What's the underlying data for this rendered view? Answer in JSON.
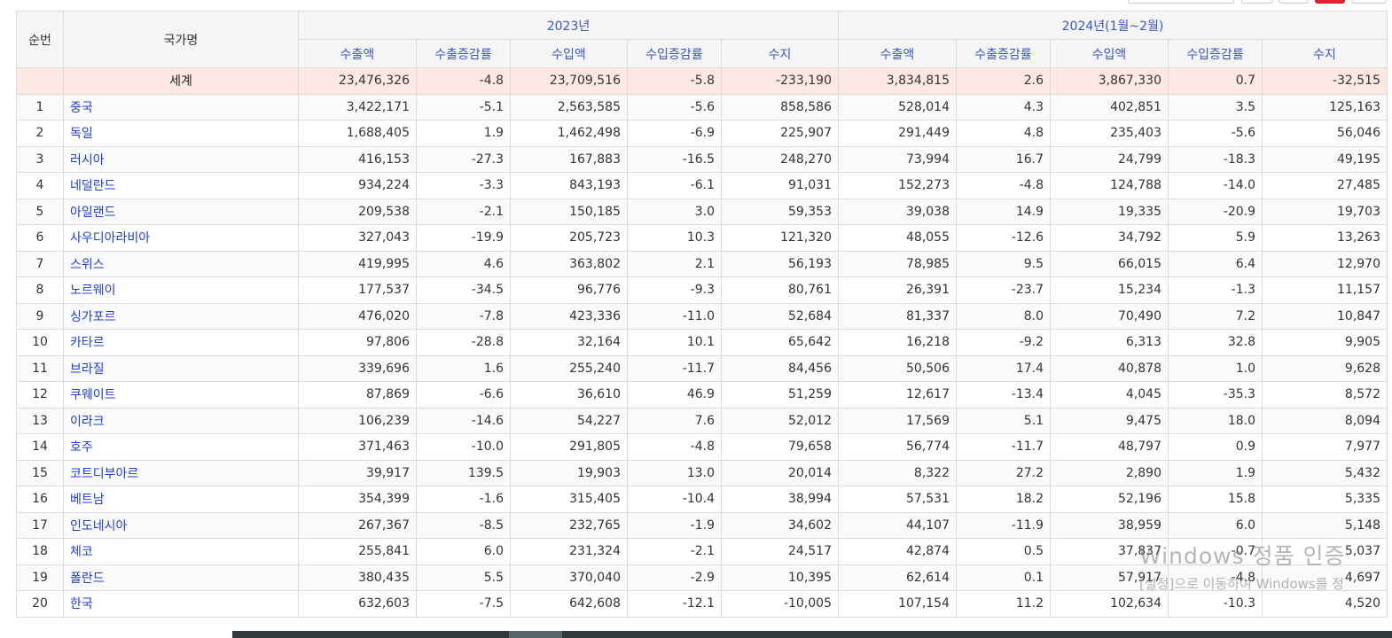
{
  "headers": {
    "index": "순번",
    "country": "국가명",
    "period_2023": "2023년",
    "period_2024": "2024년(1월~2월)",
    "sub": [
      "수출액",
      "수출증감률",
      "수입액",
      "수입증감률",
      "수지"
    ]
  },
  "world": {
    "index": "",
    "name": "세계",
    "values": [
      "23,476,326",
      "-4.8",
      "23,709,516",
      "-5.8",
      "-233,190",
      "3,834,815",
      "2.6",
      "3,867,330",
      "0.7",
      "-32,515"
    ]
  },
  "rows": [
    {
      "index": "1",
      "name": "중국",
      "values": [
        "3,422,171",
        "-5.1",
        "2,563,585",
        "-5.6",
        "858,586",
        "528,014",
        "4.3",
        "402,851",
        "3.5",
        "125,163"
      ]
    },
    {
      "index": "2",
      "name": "독일",
      "values": [
        "1,688,405",
        "1.9",
        "1,462,498",
        "-6.9",
        "225,907",
        "291,449",
        "4.8",
        "235,403",
        "-5.6",
        "56,046"
      ]
    },
    {
      "index": "3",
      "name": "러시아",
      "values": [
        "416,153",
        "-27.3",
        "167,883",
        "-16.5",
        "248,270",
        "73,994",
        "16.7",
        "24,799",
        "-18.3",
        "49,195"
      ]
    },
    {
      "index": "4",
      "name": "네덜란드",
      "values": [
        "934,224",
        "-3.3",
        "843,193",
        "-6.1",
        "91,031",
        "152,273",
        "-4.8",
        "124,788",
        "-14.0",
        "27,485"
      ]
    },
    {
      "index": "5",
      "name": "아일랜드",
      "values": [
        "209,538",
        "-2.1",
        "150,185",
        "3.0",
        "59,353",
        "39,038",
        "14.9",
        "19,335",
        "-20.9",
        "19,703"
      ]
    },
    {
      "index": "6",
      "name": "사우디아라비아",
      "values": [
        "327,043",
        "-19.9",
        "205,723",
        "10.3",
        "121,320",
        "48,055",
        "-12.6",
        "34,792",
        "5.9",
        "13,263"
      ]
    },
    {
      "index": "7",
      "name": "스위스",
      "values": [
        "419,995",
        "4.6",
        "363,802",
        "2.1",
        "56,193",
        "78,985",
        "9.5",
        "66,015",
        "6.4",
        "12,970"
      ]
    },
    {
      "index": "8",
      "name": "노르웨이",
      "values": [
        "177,537",
        "-34.5",
        "96,776",
        "-9.3",
        "80,761",
        "26,391",
        "-23.7",
        "15,234",
        "-1.3",
        "11,157"
      ]
    },
    {
      "index": "9",
      "name": "싱가포르",
      "values": [
        "476,020",
        "-7.8",
        "423,336",
        "-11.0",
        "52,684",
        "81,337",
        "8.0",
        "70,490",
        "7.2",
        "10,847"
      ]
    },
    {
      "index": "10",
      "name": "카타르",
      "values": [
        "97,806",
        "-28.8",
        "32,164",
        "10.1",
        "65,642",
        "16,218",
        "-9.2",
        "6,313",
        "32.8",
        "9,905"
      ]
    },
    {
      "index": "11",
      "name": "브라질",
      "values": [
        "339,696",
        "1.6",
        "255,240",
        "-11.7",
        "84,456",
        "50,506",
        "17.4",
        "40,878",
        "1.0",
        "9,628"
      ]
    },
    {
      "index": "12",
      "name": "쿠웨이트",
      "values": [
        "87,869",
        "-6.6",
        "36,610",
        "46.9",
        "51,259",
        "12,617",
        "-13.4",
        "4,045",
        "-35.3",
        "8,572"
      ]
    },
    {
      "index": "13",
      "name": "이라크",
      "values": [
        "106,239",
        "-14.6",
        "54,227",
        "7.6",
        "52,012",
        "17,569",
        "5.1",
        "9,475",
        "18.0",
        "8,094"
      ]
    },
    {
      "index": "14",
      "name": "호주",
      "values": [
        "371,463",
        "-10.0",
        "291,805",
        "-4.8",
        "79,658",
        "56,774",
        "-11.7",
        "48,797",
        "0.9",
        "7,977"
      ]
    },
    {
      "index": "15",
      "name": "코트디부아르",
      "values": [
        "39,917",
        "139.5",
        "19,903",
        "13.0",
        "20,014",
        "8,322",
        "27.2",
        "2,890",
        "1.9",
        "5,432"
      ]
    },
    {
      "index": "16",
      "name": "베트남",
      "values": [
        "354,399",
        "-1.6",
        "315,405",
        "-10.4",
        "38,994",
        "57,531",
        "18.2",
        "52,196",
        "15.8",
        "5,335"
      ]
    },
    {
      "index": "17",
      "name": "인도네시아",
      "values": [
        "267,367",
        "-8.5",
        "232,765",
        "-1.9",
        "34,602",
        "44,107",
        "-11.9",
        "38,959",
        "6.0",
        "5,148"
      ]
    },
    {
      "index": "18",
      "name": "체코",
      "values": [
        "255,841",
        "6.0",
        "231,324",
        "-2.1",
        "24,517",
        "42,874",
        "0.5",
        "37,837",
        "-0.7",
        "5,037"
      ]
    },
    {
      "index": "19",
      "name": "폴란드",
      "values": [
        "380,435",
        "5.5",
        "370,040",
        "-2.9",
        "10,395",
        "62,614",
        "0.1",
        "57,917",
        "-4.8",
        "4,697"
      ]
    },
    {
      "index": "20",
      "name": "한국",
      "values": [
        "632,603",
        "-7.5",
        "642,608",
        "-12.1",
        "-10,005",
        "107,154",
        "11.2",
        "102,634",
        "-10.3",
        "4,520"
      ]
    }
  ],
  "watermark": {
    "line1": "Windows 정품 인증",
    "line2": "[설정]으로 이동하여 Windows를 정"
  },
  "colors": {
    "link": "#1f3fd1",
    "header_text": "#3b56c9",
    "world_row_bg": "#fde8e4",
    "header_bg": "#f5f5f5",
    "active_page_button": "#e0242c"
  }
}
